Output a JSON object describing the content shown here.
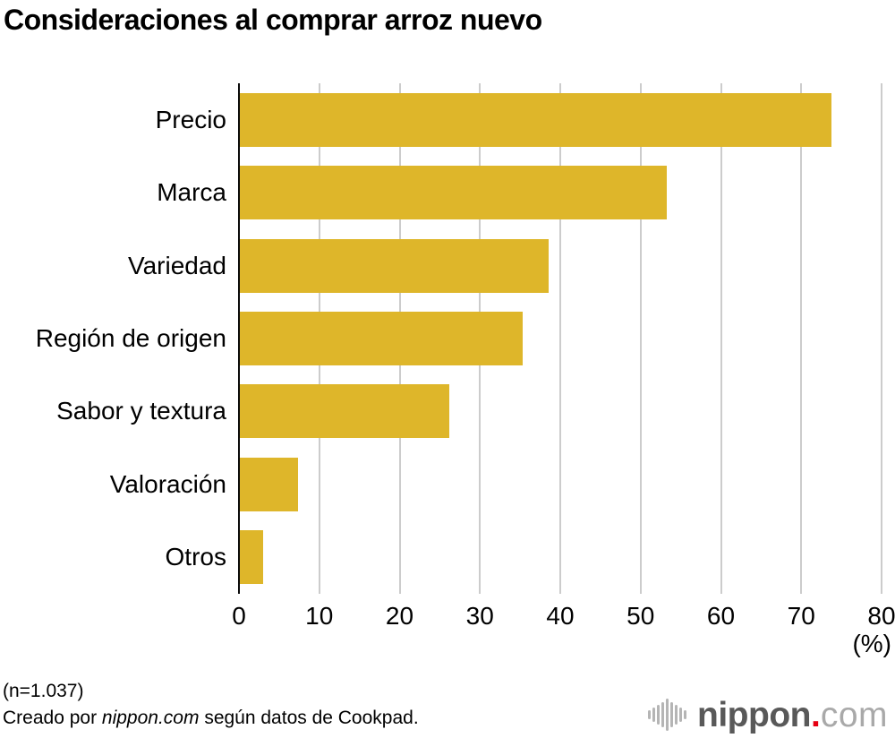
{
  "chart_data": {
    "type": "bar",
    "orientation": "horizontal",
    "title": "Consideraciones al comprar arroz nuevo",
    "categories": [
      "Precio",
      "Marca",
      "Variedad",
      "Región de origen",
      "Sabor y textura",
      "Valoración",
      "Otros"
    ],
    "values": [
      73.6,
      53.1,
      38.4,
      35.2,
      26.1,
      7.2,
      2.9
    ],
    "xlim": [
      0,
      80
    ],
    "xticks": [
      0,
      10,
      20,
      30,
      40,
      50,
      60,
      70,
      80
    ],
    "xlabel": "(%)",
    "grid": true,
    "legend": "none"
  },
  "colors": {
    "bar": "#deb62a",
    "gridline": "#cccccc",
    "axis": "#0a0a0a"
  },
  "footer": {
    "sample_size": "(n=1.037)",
    "credit_prefix": "Creado por ",
    "credit_brand": "nippon.com",
    "credit_suffix": " según datos de Cookpad."
  },
  "logo": {
    "icon": "soundwave-icon",
    "name": "nippon",
    "dot": ".",
    "tld": "com"
  }
}
